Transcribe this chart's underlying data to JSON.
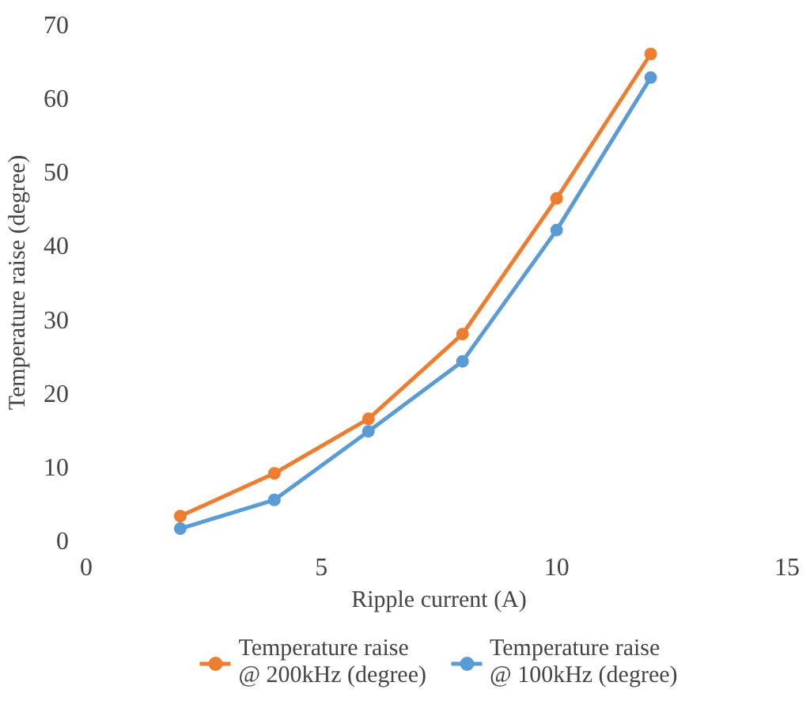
{
  "chart_data": {
    "type": "line",
    "xlabel": "Ripple current (A)",
    "ylabel": "Temperature raise (degree)",
    "x": [
      2,
      4,
      6,
      8,
      10,
      12
    ],
    "series": [
      {
        "name": "Temperature raise @ 200kHz (degree)",
        "color": "#ed7d31",
        "values": [
          3.3,
          9.1,
          16.5,
          28,
          46.4,
          66
        ]
      },
      {
        "name": "Temperature raise @ 100kHz (degree)",
        "color": "#5b9bd5",
        "values": [
          1.6,
          5.5,
          14.8,
          24.3,
          42.1,
          62.8
        ]
      }
    ],
    "xlim": [
      0,
      15
    ],
    "xticks": [
      0,
      5,
      10,
      15
    ],
    "ylim": [
      0,
      70
    ],
    "yticks": [
      0,
      10,
      20,
      30,
      40,
      50,
      60,
      70
    ],
    "grid": false,
    "legend": "bottom",
    "marker": "circle",
    "line_style": "solid"
  }
}
